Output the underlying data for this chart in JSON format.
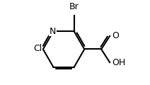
{
  "background_color": "#ffffff",
  "ring_color": "#000000",
  "text_color": "#000000",
  "label_Br": "Br",
  "label_Cl": "Cl",
  "label_N": "N",
  "label_O1": "O",
  "label_OH": "OH",
  "line_width": 1.5,
  "font_size": 9
}
